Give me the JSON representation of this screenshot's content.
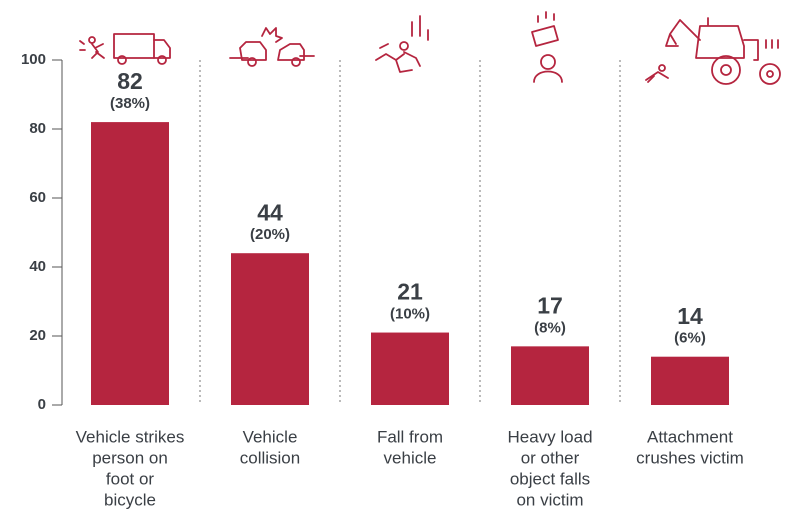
{
  "chart_data": {
    "type": "bar",
    "categories": [
      [
        "Vehicle strikes",
        "person on",
        "foot or",
        "bicycle"
      ],
      [
        "Vehicle",
        "collision"
      ],
      [
        "Fall from",
        "vehicle"
      ],
      [
        "Heavy load",
        "or other",
        "object falls",
        "on victim"
      ],
      [
        "Attachment",
        "crushes victim"
      ]
    ],
    "values": [
      82,
      44,
      21,
      17,
      14
    ],
    "shares": [
      {
        "value": 38,
        "label": "(38%)"
      },
      {
        "value": 20,
        "label": "(20%)"
      },
      {
        "value": 10,
        "label": "(10%)"
      },
      {
        "value": 8,
        "label": "(8%)"
      },
      {
        "value": 6,
        "label": "(6%)"
      }
    ],
    "color": "#b5253f",
    "ylim": [
      0,
      100
    ],
    "yticks": [
      0,
      20,
      40,
      60,
      80,
      100
    ]
  }
}
